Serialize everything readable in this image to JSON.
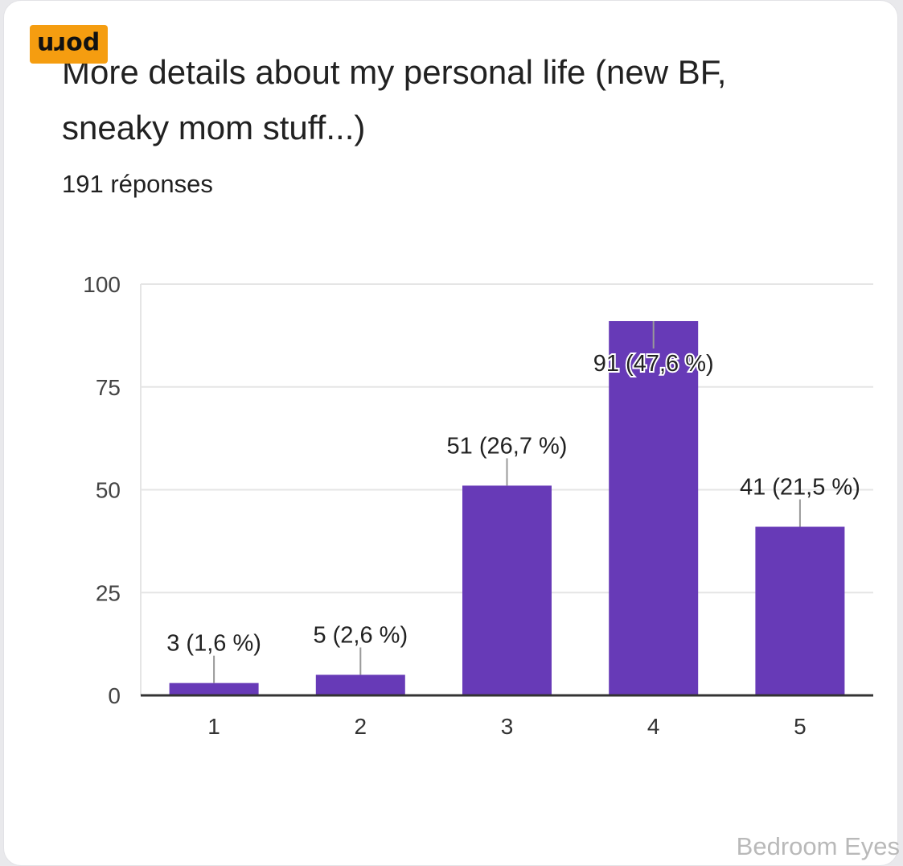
{
  "badge": {
    "text": "porn"
  },
  "card": {
    "title": "More details about my personal life (new BF, sneaky mom stuff...)",
    "responses": "191 réponses"
  },
  "watermark": "Bedroom Eyes",
  "colors": {
    "bar": "#673ab7",
    "grid": "#e5e5e5",
    "axis": "#333333",
    "text": "#212121"
  },
  "chart_data": {
    "type": "bar",
    "title": "More details about my personal life (new BF, sneaky mom stuff...)",
    "xlabel": "",
    "ylabel": "",
    "ylim": [
      0,
      100
    ],
    "yticks": [
      0,
      25,
      50,
      75,
      100
    ],
    "grid": true,
    "categories": [
      "1",
      "2",
      "3",
      "4",
      "5"
    ],
    "values": [
      3,
      5,
      51,
      91,
      41
    ],
    "data_labels": [
      "3 (1,6 %)",
      "5 (2,6 %)",
      "51 (26,7 %)",
      "91 (47,6 %)",
      "41 (21,5 %)"
    ]
  }
}
